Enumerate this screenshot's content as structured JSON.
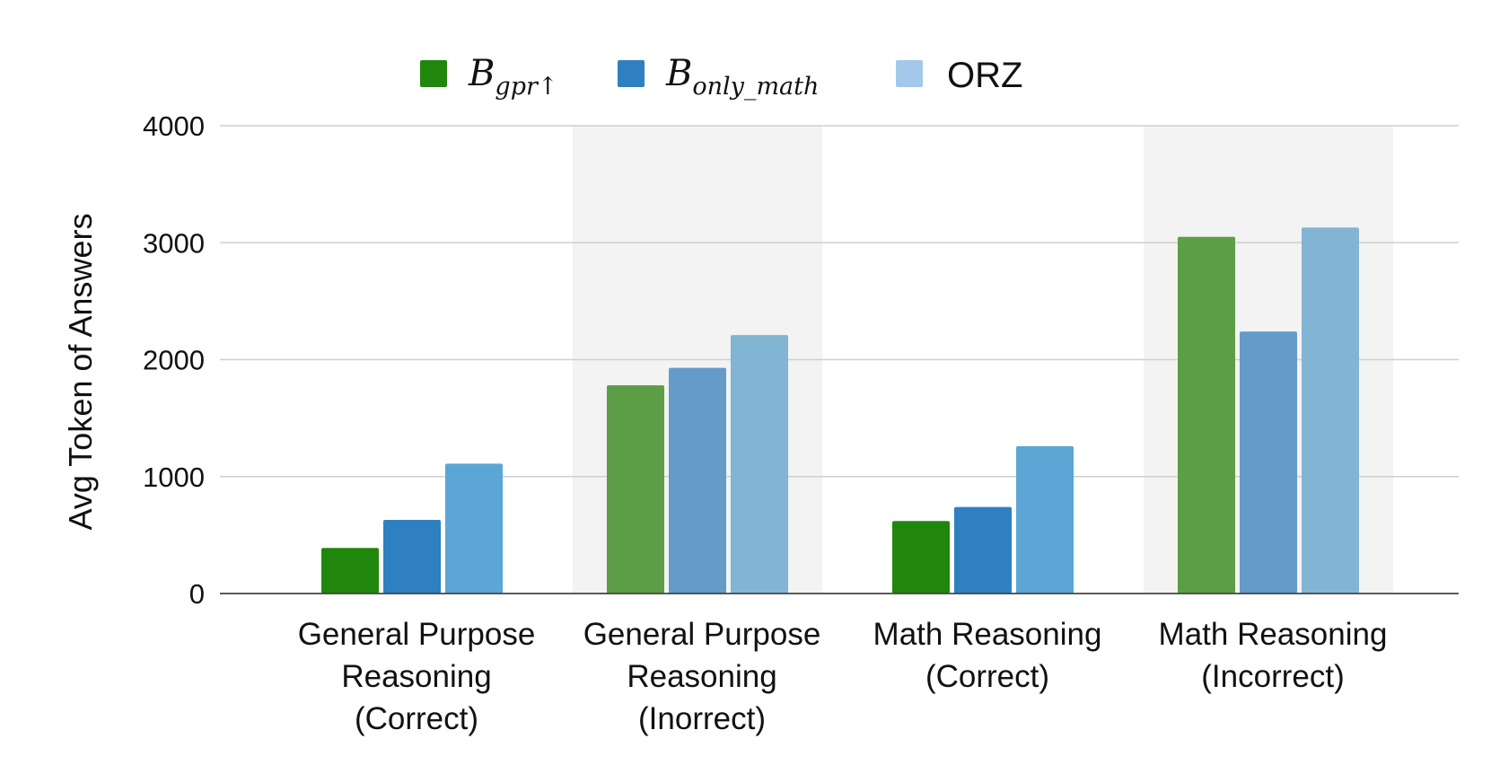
{
  "chart_data": {
    "type": "bar",
    "ylabel": "Avg Token of Answers",
    "xlabel": "",
    "ylim": [
      0,
      4000
    ],
    "yticks": [
      0,
      1000,
      2000,
      3000,
      4000
    ],
    "grid": true,
    "legend_position": "top-center",
    "categories": [
      [
        "General Purpose",
        "Reasoning",
        "(Correct)"
      ],
      [
        "General Purpose",
        "Reasoning",
        "(Inorrect)"
      ],
      [
        "Math Reasoning",
        "(Correct)"
      ],
      [
        "Math Reasoning",
        "(Incorrect)"
      ]
    ],
    "shaded_categories": [
      1,
      3
    ],
    "series": [
      {
        "name": "B_gpr↑",
        "legend_main": "B",
        "legend_sub": "gpr↑",
        "legend_color": "#21870c",
        "colors": [
          "#21870c",
          "#5c9e45",
          "#21870c",
          "#5c9e45"
        ],
        "values": [
          390,
          1780,
          620,
          3050
        ]
      },
      {
        "name": "B_only_math",
        "legend_main": "B",
        "legend_sub": "only_math",
        "legend_color": "#2f80c1",
        "colors": [
          "#2f80c1",
          "#659bc8",
          "#2f80c1",
          "#659bc8"
        ],
        "values": [
          630,
          1930,
          740,
          2240
        ]
      },
      {
        "name": "ORZ",
        "legend_main": "ORZ",
        "legend_sub": "",
        "legend_color": "#a3c8eb",
        "colors": [
          "#5ba6d4",
          "#82b4d4",
          "#5ba6d4",
          "#82b4d4"
        ],
        "values": [
          1110,
          2210,
          1260,
          3130
        ]
      }
    ]
  }
}
